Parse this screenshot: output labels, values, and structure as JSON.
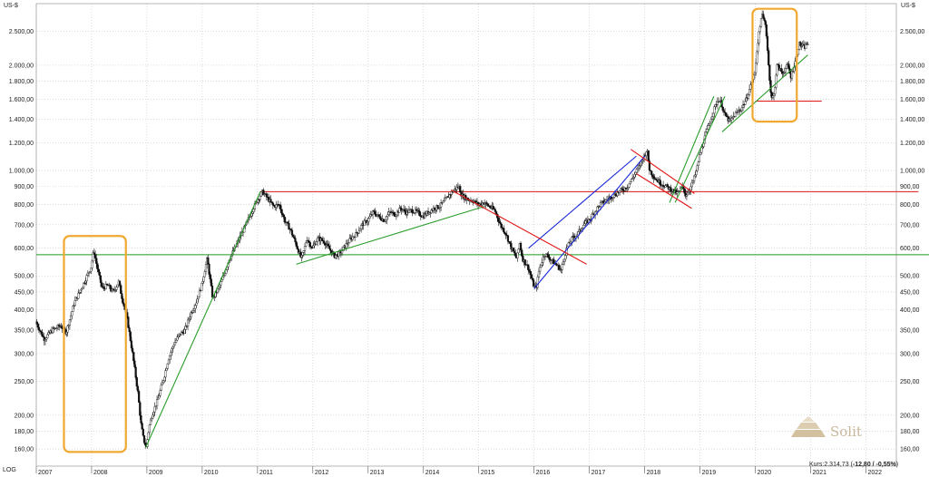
{
  "chart_data": {
    "type": "candlestick",
    "scale": "log",
    "unit_left": "US-$",
    "unit_right": "US-$",
    "scale_label": "LOG",
    "yticks": [
      {
        "v": 160,
        "label": "160,00"
      },
      {
        "v": 180,
        "label": "180,00"
      },
      {
        "v": 200,
        "label": "200,00"
      },
      {
        "v": 250,
        "label": "250,00"
      },
      {
        "v": 300,
        "label": "300,00"
      },
      {
        "v": 350,
        "label": "350,00"
      },
      {
        "v": 400,
        "label": "400,00"
      },
      {
        "v": 450,
        "label": "450,00"
      },
      {
        "v": 500,
        "label": "500,00"
      },
      {
        "v": 600,
        "label": "600,00"
      },
      {
        "v": 700,
        "label": "700,00"
      },
      {
        "v": 800,
        "label": "800,00"
      },
      {
        "v": 900,
        "label": "900,00"
      },
      {
        "v": 1000,
        "label": "1.000,00"
      },
      {
        "v": 1200,
        "label": "1.200,00"
      },
      {
        "v": 1400,
        "label": "1.400,00"
      },
      {
        "v": 1600,
        "label": "1.600,00"
      },
      {
        "v": 1800,
        "label": "1.800,00"
      },
      {
        "v": 2000,
        "label": "2.000,00"
      },
      {
        "v": 2500,
        "label": "2.500,00"
      }
    ],
    "ylim": [
      143,
      3000
    ],
    "xlim": [
      2007.0,
      2022.55
    ],
    "years": [
      2007,
      2008,
      2009,
      2010,
      2011,
      2012,
      2013,
      2014,
      2015,
      2016,
      2017,
      2018,
      2019,
      2020,
      2021,
      2022
    ],
    "price_path": [
      [
        2007.0,
        370
      ],
      [
        2007.15,
        330
      ],
      [
        2007.3,
        350
      ],
      [
        2007.45,
        360
      ],
      [
        2007.55,
        345
      ],
      [
        2007.7,
        420
      ],
      [
        2007.85,
        470
      ],
      [
        2008.0,
        530
      ],
      [
        2008.05,
        590
      ],
      [
        2008.12,
        520
      ],
      [
        2008.2,
        460
      ],
      [
        2008.3,
        470
      ],
      [
        2008.4,
        450
      ],
      [
        2008.5,
        480
      ],
      [
        2008.55,
        440
      ],
      [
        2008.65,
        380
      ],
      [
        2008.75,
        300
      ],
      [
        2008.85,
        230
      ],
      [
        2008.9,
        190
      ],
      [
        2008.95,
        170
      ],
      [
        2009.0,
        162
      ],
      [
        2009.05,
        185
      ],
      [
        2009.1,
        200
      ],
      [
        2009.2,
        220
      ],
      [
        2009.3,
        250
      ],
      [
        2009.4,
        290
      ],
      [
        2009.5,
        320
      ],
      [
        2009.6,
        340
      ],
      [
        2009.7,
        350
      ],
      [
        2009.8,
        390
      ],
      [
        2009.9,
        420
      ],
      [
        2010.0,
        470
      ],
      [
        2010.1,
        560
      ],
      [
        2010.2,
        430
      ],
      [
        2010.3,
        460
      ],
      [
        2010.4,
        500
      ],
      [
        2010.5,
        560
      ],
      [
        2010.6,
        600
      ],
      [
        2010.7,
        650
      ],
      [
        2010.8,
        700
      ],
      [
        2010.9,
        760
      ],
      [
        2011.0,
        820
      ],
      [
        2011.1,
        870
      ],
      [
        2011.2,
        830
      ],
      [
        2011.3,
        790
      ],
      [
        2011.4,
        800
      ],
      [
        2011.5,
        720
      ],
      [
        2011.6,
        680
      ],
      [
        2011.7,
        620
      ],
      [
        2011.8,
        560
      ],
      [
        2011.85,
        590
      ],
      [
        2011.9,
        640
      ],
      [
        2012.0,
        600
      ],
      [
        2012.1,
        640
      ],
      [
        2012.2,
        630
      ],
      [
        2012.3,
        600
      ],
      [
        2012.4,
        570
      ],
      [
        2012.5,
        580
      ],
      [
        2012.6,
        610
      ],
      [
        2012.7,
        640
      ],
      [
        2012.8,
        660
      ],
      [
        2012.9,
        700
      ],
      [
        2013.0,
        720
      ],
      [
        2013.1,
        760
      ],
      [
        2013.2,
        740
      ],
      [
        2013.3,
        720
      ],
      [
        2013.4,
        760
      ],
      [
        2013.5,
        750
      ],
      [
        2013.6,
        780
      ],
      [
        2013.7,
        760
      ],
      [
        2013.8,
        770
      ],
      [
        2013.9,
        760
      ],
      [
        2014.0,
        740
      ],
      [
        2014.1,
        760
      ],
      [
        2014.2,
        780
      ],
      [
        2014.3,
        790
      ],
      [
        2014.4,
        820
      ],
      [
        2014.5,
        860
      ],
      [
        2014.6,
        890
      ],
      [
        2014.65,
        900
      ],
      [
        2014.7,
        850
      ],
      [
        2014.8,
        830
      ],
      [
        2014.9,
        820
      ],
      [
        2015.0,
        800
      ],
      [
        2015.1,
        810
      ],
      [
        2015.2,
        790
      ],
      [
        2015.3,
        770
      ],
      [
        2015.4,
        700
      ],
      [
        2015.5,
        660
      ],
      [
        2015.6,
        600
      ],
      [
        2015.7,
        560
      ],
      [
        2015.75,
        620
      ],
      [
        2015.8,
        560
      ],
      [
        2015.9,
        530
      ],
      [
        2016.0,
        470
      ],
      [
        2016.05,
        460
      ],
      [
        2016.1,
        520
      ],
      [
        2016.2,
        580
      ],
      [
        2016.3,
        560
      ],
      [
        2016.4,
        540
      ],
      [
        2016.5,
        520
      ],
      [
        2016.6,
        600
      ],
      [
        2016.7,
        640
      ],
      [
        2016.8,
        660
      ],
      [
        2016.9,
        700
      ],
      [
        2017.0,
        720
      ],
      [
        2017.1,
        760
      ],
      [
        2017.2,
        800
      ],
      [
        2017.3,
        820
      ],
      [
        2017.4,
        840
      ],
      [
        2017.5,
        860
      ],
      [
        2017.6,
        880
      ],
      [
        2017.7,
        900
      ],
      [
        2017.8,
        960
      ],
      [
        2017.9,
        1020
      ],
      [
        2018.0,
        1100
      ],
      [
        2018.05,
        1150
      ],
      [
        2018.1,
        1000
      ],
      [
        2018.2,
        950
      ],
      [
        2018.3,
        920
      ],
      [
        2018.4,
        900
      ],
      [
        2018.5,
        880
      ],
      [
        2018.6,
        860
      ],
      [
        2018.7,
        900
      ],
      [
        2018.75,
        850
      ],
      [
        2018.85,
        900
      ],
      [
        2018.95,
        1000
      ],
      [
        2019.0,
        1100
      ],
      [
        2019.1,
        1250
      ],
      [
        2019.2,
        1400
      ],
      [
        2019.3,
        1550
      ],
      [
        2019.35,
        1600
      ],
      [
        2019.4,
        1550
      ],
      [
        2019.45,
        1450
      ],
      [
        2019.55,
        1380
      ],
      [
        2019.65,
        1450
      ],
      [
        2019.75,
        1500
      ],
      [
        2019.85,
        1600
      ],
      [
        2019.9,
        1700
      ],
      [
        2020.0,
        1900
      ],
      [
        2020.05,
        2300
      ],
      [
        2020.1,
        2600
      ],
      [
        2020.12,
        2800
      ],
      [
        2020.2,
        2600
      ],
      [
        2020.25,
        2000
      ],
      [
        2020.3,
        1600
      ],
      [
        2020.35,
        1650
      ],
      [
        2020.4,
        2000
      ],
      [
        2020.5,
        1900
      ],
      [
        2020.6,
        2000
      ],
      [
        2020.65,
        1850
      ],
      [
        2020.75,
        2100
      ],
      [
        2020.8,
        2300
      ],
      [
        2020.9,
        2250
      ],
      [
        2020.95,
        2310
      ]
    ],
    "trendlines": [
      {
        "color": "#2a9d2a",
        "points": [
          [
            2008.98,
            162
          ],
          [
            2011.05,
            870
          ]
        ]
      },
      {
        "color": "#2a9d2a",
        "points": [
          [
            2011.7,
            540
          ],
          [
            2015.1,
            790
          ]
        ]
      },
      {
        "color": "#2a9d2a",
        "points": [
          [
            2018.45,
            810
          ],
          [
            2019.25,
            1630
          ]
        ]
      },
      {
        "color": "#2a9d2a",
        "points": [
          [
            2018.55,
            810
          ],
          [
            2019.45,
            1630
          ]
        ]
      },
      {
        "color": "#2a9d2a",
        "points": [
          [
            2019.4,
            1290
          ],
          [
            2020.95,
            2140
          ]
        ]
      },
      {
        "color": "#1a28d8",
        "points": [
          [
            2016.0,
            460
          ],
          [
            2018.0,
            1100
          ]
        ]
      },
      {
        "color": "#1a28d8",
        "points": [
          [
            2015.9,
            600
          ],
          [
            2017.85,
            1100
          ]
        ]
      },
      {
        "color": "#e01515",
        "points": [
          [
            2014.5,
            880
          ],
          [
            2016.95,
            540
          ]
        ]
      },
      {
        "color": "#e01515",
        "points": [
          [
            2017.75,
            1150
          ],
          [
            2018.9,
            860
          ]
        ]
      },
      {
        "color": "#e01515",
        "points": [
          [
            2017.85,
            980
          ],
          [
            2018.85,
            780
          ]
        ]
      }
    ],
    "hlines": [
      {
        "color": "#e01515",
        "value": 870,
        "from": 2011.05,
        "to": 2022.95
      },
      {
        "color": "#1f9a1f",
        "value": 575,
        "from": 2007.0,
        "to": 2023.5
      },
      {
        "color": "#e01515",
        "value": 1580,
        "from": 2020.0,
        "to": 2021.2
      }
    ],
    "highlight_boxes": [
      {
        "color": "#f0a830",
        "from": 2007.5,
        "to": 2008.62,
        "ymin": 157,
        "ymax": 650
      },
      {
        "color": "#f0a830",
        "from": 2019.95,
        "to": 2020.75,
        "ymin": 1380,
        "ymax": 2900
      }
    ],
    "quote": {
      "prefix": "Kurs:2.314,73 (",
      "change": "-12,80 / -0,55%",
      "suffix": ")"
    },
    "logo_text": "Solit"
  }
}
